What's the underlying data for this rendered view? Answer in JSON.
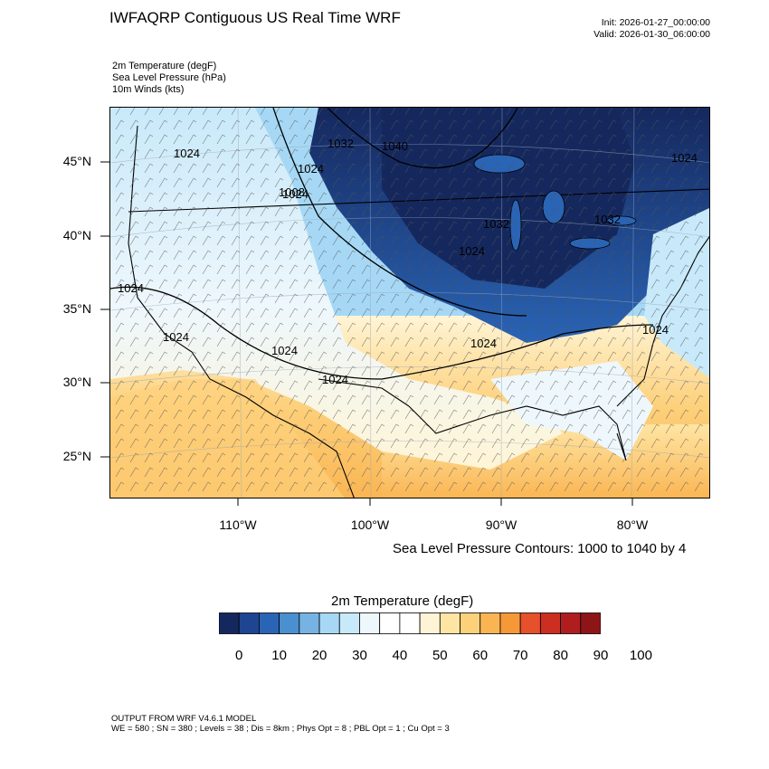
{
  "header": {
    "title": "IWFAQRP Contiguous US Real Time WRF",
    "init": "Init: 2026-01-27_00:00:00",
    "valid": "Valid: 2026-01-30_06:00:00"
  },
  "fields": [
    "2m Temperature   (degF)",
    "Sea Level Pressure   (hPa)",
    "10m Winds   (kts)"
  ],
  "map": {
    "lat_labels": [
      "45°N",
      "40°N",
      "35°N",
      "30°N",
      "25°N"
    ],
    "lon_labels": [
      "110°W",
      "100°W",
      "90°W",
      "80°W"
    ],
    "contour_labels": [
      "1024",
      "1024",
      "1024",
      "1032",
      "1040",
      "1032",
      "1024",
      "1032",
      "1024",
      "1024",
      "1024",
      "1024",
      "1024",
      "1024",
      "1024",
      "1008"
    ],
    "contour_note": "Sea Level Pressure Contours: 1000 to 1040 by 4"
  },
  "colorbar": {
    "title": "2m Temperature  (degF)",
    "colors": [
      "#15285e",
      "#1e4592",
      "#2a64b5",
      "#4a8fd0",
      "#76b3e3",
      "#a6d8f5",
      "#c8e9fa",
      "#eef7fc",
      "#ffffff",
      "#ffffff",
      "#fff5d6",
      "#ffe5a3",
      "#fdd07a",
      "#fab552",
      "#f59838",
      "#e6502a",
      "#cc2f22",
      "#b01d1f",
      "#8d1517"
    ],
    "labels": [
      "0",
      "10",
      "20",
      "30",
      "40",
      "50",
      "60",
      "70",
      "80",
      "90",
      "100"
    ]
  },
  "footer": {
    "line1": "OUTPUT FROM WRF V4.6.1 MODEL",
    "line2": "WE = 580 ; SN = 380 ; Levels = 38 ; Dis = 8km ; Phys Opt = 8 ; PBL Opt = 1 ; Cu Opt = 3"
  }
}
